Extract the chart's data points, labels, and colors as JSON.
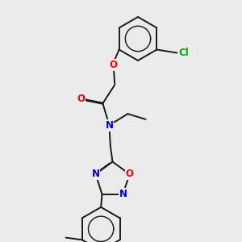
{
  "bg_color": "#ebebeb",
  "bond_color": "#1a1a1a",
  "bond_width": 1.4,
  "dbo": 0.018,
  "atom_colors": {
    "O": "#ff0000",
    "N": "#0000cd",
    "Cl": "#00aa00",
    "C": "#1a1a1a"
  },
  "font_size": 8.5,
  "figsize": [
    3.0,
    3.0
  ],
  "dpi": 100
}
